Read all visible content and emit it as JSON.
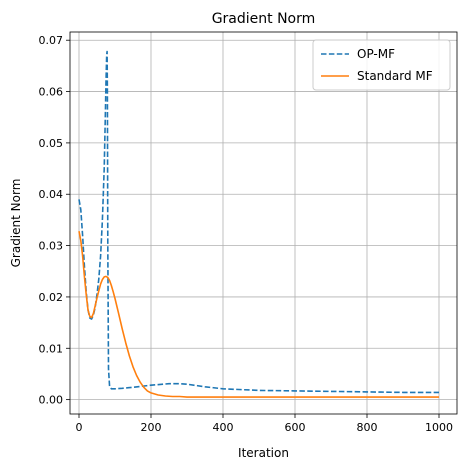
{
  "chart_data": {
    "type": "line",
    "title": "Gradient Norm",
    "xlabel": "Iteration",
    "ylabel": "Gradient Norm",
    "xlim": [
      -25,
      1050
    ],
    "ylim": [
      -0.0028,
      0.0716
    ],
    "xticks": [
      0,
      200,
      400,
      600,
      800,
      1000
    ],
    "xtick_labels": [
      "0",
      "200",
      "400",
      "600",
      "800",
      "1000"
    ],
    "yticks": [
      0.0,
      0.01,
      0.02,
      0.03,
      0.04,
      0.05,
      0.06,
      0.07
    ],
    "ytick_labels": [
      "0.00",
      "0.01",
      "0.02",
      "0.03",
      "0.04",
      "0.05",
      "0.06",
      "0.07"
    ],
    "grid": true,
    "legend_position": "top-right",
    "series": [
      {
        "name": "OP-MF",
        "color": "#1f77b4",
        "style": "dashed",
        "x": [
          0,
          5,
          10,
          15,
          20,
          25,
          30,
          35,
          40,
          45,
          50,
          55,
          60,
          65,
          70,
          73,
          75,
          77,
          78,
          79,
          80,
          82,
          85,
          90,
          100,
          120,
          150,
          200,
          250,
          280,
          300,
          350,
          400,
          500,
          600,
          700,
          800,
          900,
          1000
        ],
        "y": [
          0.039,
          0.037,
          0.032,
          0.026,
          0.021,
          0.0175,
          0.0159,
          0.0157,
          0.0165,
          0.018,
          0.0205,
          0.0235,
          0.028,
          0.035,
          0.045,
          0.055,
          0.062,
          0.0672,
          0.0678,
          0.06,
          0.03,
          0.006,
          0.0025,
          0.0021,
          0.0021,
          0.0022,
          0.0024,
          0.0028,
          0.0031,
          0.0031,
          0.003,
          0.0025,
          0.0021,
          0.0018,
          0.0017,
          0.0016,
          0.0015,
          0.0014,
          0.0014
        ]
      },
      {
        "name": "Standard MF",
        "color": "#ff7f0e",
        "style": "solid",
        "x": [
          0,
          5,
          10,
          15,
          20,
          25,
          30,
          35,
          40,
          45,
          50,
          55,
          60,
          65,
          70,
          75,
          80,
          85,
          90,
          95,
          100,
          110,
          120,
          130,
          140,
          150,
          160,
          170,
          180,
          190,
          200,
          220,
          240,
          260,
          280,
          300,
          350,
          400,
          500,
          600,
          700,
          800,
          900,
          1000
        ],
        "y": [
          0.0328,
          0.031,
          0.028,
          0.024,
          0.0205,
          0.0175,
          0.0162,
          0.016,
          0.0168,
          0.0183,
          0.0198,
          0.0212,
          0.0225,
          0.0234,
          0.0239,
          0.024,
          0.0238,
          0.0232,
          0.0222,
          0.021,
          0.0197,
          0.0168,
          0.0138,
          0.011,
          0.0085,
          0.0064,
          0.0047,
          0.0034,
          0.0024,
          0.0017,
          0.0013,
          0.0009,
          0.0007,
          0.0006,
          0.0006,
          0.0005,
          0.0005,
          0.0005,
          0.0005,
          0.0005,
          0.0005,
          0.0005,
          0.0005,
          0.0005
        ]
      }
    ]
  }
}
